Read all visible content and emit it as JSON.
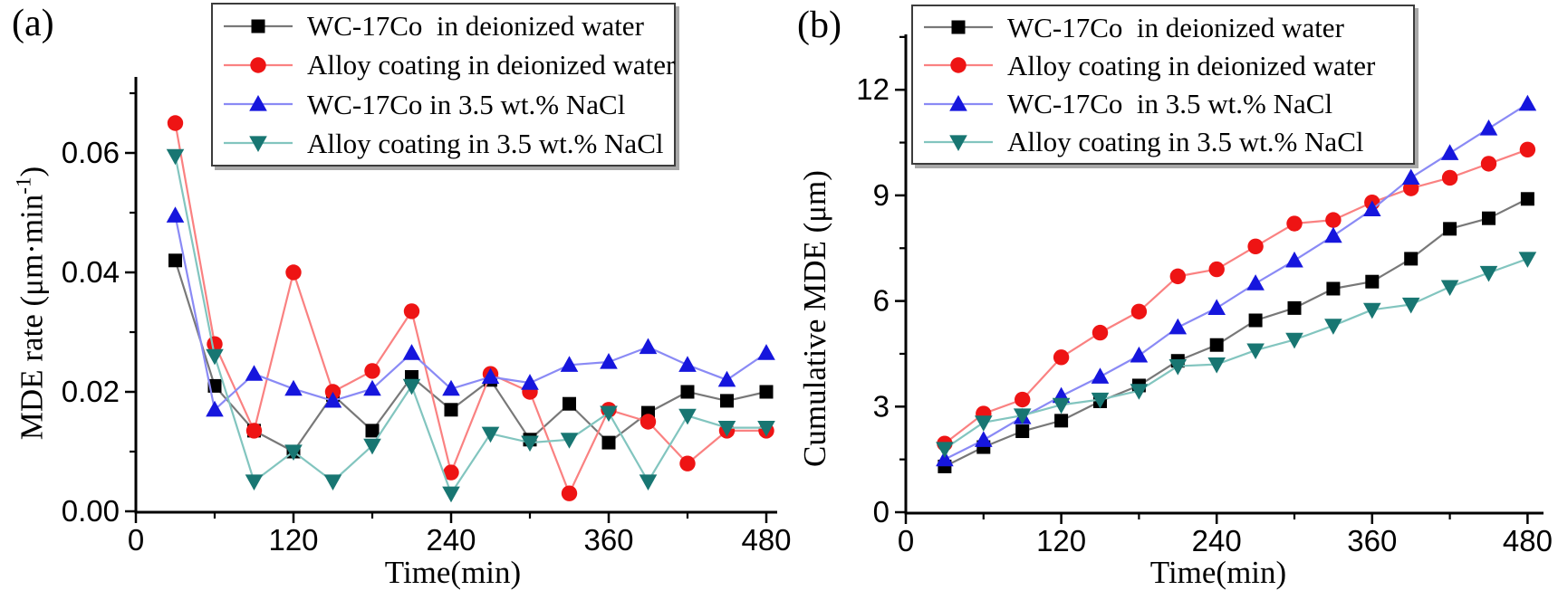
{
  "figure": {
    "panel_a": {
      "panel_label": "(a)",
      "x_title": "Time(min)",
      "y_title_prefix": "MDE rate (μm·min",
      "y_title_sup": "-1",
      "y_title_suffix": ")",
      "x_tick_labels": [
        "0",
        "120",
        "240",
        "360",
        "480"
      ],
      "y_tick_labels": [
        "0.00",
        "0.02",
        "0.04",
        "0.06"
      ],
      "legend": [
        "WC-17Co  in deionized water",
        "Alloy coating in deionized water",
        "WC-17Co in 3.5 wt.% NaCl",
        "Alloy coating in 3.5 wt.% NaCl"
      ]
    },
    "panel_b": {
      "panel_label": "(b)",
      "x_title": "Time(min)",
      "y_title": "Cumulative MDE (μm)",
      "x_tick_labels": [
        "0",
        "120",
        "240",
        "360",
        "480"
      ],
      "y_tick_labels": [
        "0",
        "3",
        "6",
        "9",
        "12"
      ],
      "legend": [
        "WC-17Co  in deionized water",
        "Alloy coating in deionized water",
        "WC-17Co  in 3.5 wt.% NaCl",
        "Alloy coating in 3.5 wt.% NaCl"
      ]
    },
    "series_styles": [
      {
        "name": "WC-17Co in deionized water",
        "marker": "square",
        "marker_color": "#000000",
        "line_color": "#787878"
      },
      {
        "name": "Alloy coating in deionized water",
        "marker": "circle",
        "marker_color": "#ee1414",
        "line_color": "#fa8181"
      },
      {
        "name": "WC-17Co in 3.5 wt.% NaCl",
        "marker": "triangle-up",
        "marker_color": "#1616dd",
        "line_color": "#8a8af5"
      },
      {
        "name": "Alloy coating in 3.5 wt.% NaCl",
        "marker": "triangle-down",
        "marker_color": "#187672",
        "line_color": "#82c5bf"
      }
    ],
    "colors": {
      "axis": "#000000",
      "background": "#ffffff",
      "legend_border": "#3c3c3c"
    }
  },
  "chart_data": [
    {
      "id": "a",
      "type": "line",
      "title": "",
      "xlabel": "Time(min)",
      "ylabel": "MDE rate (μm·min^-1)",
      "xlim": [
        0,
        488
      ],
      "ylim": [
        0,
        0.0727
      ],
      "x_ticks_major": [
        0,
        120,
        240,
        360,
        480
      ],
      "x_ticks_minor": [
        60,
        180,
        300,
        420
      ],
      "y_ticks_major": [
        0,
        0.02,
        0.04,
        0.06
      ],
      "y_ticks_minor": [
        0.01,
        0.03,
        0.05,
        0.07
      ],
      "grid": false,
      "legend_position": "top",
      "x": [
        30,
        60,
        90,
        120,
        150,
        180,
        210,
        240,
        270,
        300,
        330,
        360,
        390,
        420,
        450,
        480
      ],
      "series": [
        {
          "name": "WC-17Co in deionized water",
          "values": [
            0.042,
            0.021,
            0.0135,
            0.01,
            0.0195,
            0.0135,
            0.0225,
            0.017,
            0.022,
            0.012,
            0.018,
            0.0115,
            0.0165,
            0.02,
            0.0185,
            0.02
          ]
        },
        {
          "name": "Alloy coating in deionized water",
          "values": [
            0.065,
            0.028,
            0.0135,
            0.04,
            0.02,
            0.0235,
            0.0335,
            0.0065,
            0.023,
            0.02,
            0.003,
            0.017,
            0.015,
            0.008,
            0.0135,
            0.0135
          ]
        },
        {
          "name": "WC-17Co in 3.5 wt.% NaCl",
          "values": [
            0.0495,
            0.017,
            0.023,
            0.0205,
            0.0185,
            0.0205,
            0.0265,
            0.0205,
            0.0225,
            0.0215,
            0.0245,
            0.025,
            0.0275,
            0.0245,
            0.022,
            0.0265
          ]
        },
        {
          "name": "Alloy coating in 3.5 wt.% NaCl",
          "values": [
            0.0595,
            0.026,
            0.005,
            0.01,
            0.005,
            0.011,
            0.021,
            0.003,
            0.013,
            0.0115,
            0.012,
            0.0165,
            0.005,
            0.016,
            0.014,
            0.014
          ]
        }
      ]
    },
    {
      "id": "b",
      "type": "line",
      "title": "",
      "xlabel": "Time(min)",
      "ylabel": "Cumulative MDE (μm)",
      "xlim": [
        0,
        490
      ],
      "ylim": [
        0,
        13.6
      ],
      "x_ticks_major": [
        0,
        120,
        240,
        360,
        480
      ],
      "x_ticks_minor": [
        60,
        180,
        300,
        420
      ],
      "y_ticks_major": [
        0,
        3,
        6,
        9,
        12
      ],
      "y_ticks_minor": [
        1.5,
        4.5,
        7.5,
        10.5,
        13.5
      ],
      "grid": false,
      "legend_position": "top",
      "x": [
        30,
        60,
        90,
        120,
        150,
        180,
        210,
        240,
        270,
        300,
        330,
        360,
        390,
        420,
        450,
        480
      ],
      "series": [
        {
          "name": "WC-17Co in deionized water",
          "values": [
            1.3,
            1.85,
            2.3,
            2.6,
            3.15,
            3.6,
            4.3,
            4.75,
            5.45,
            5.8,
            6.35,
            6.55,
            7.2,
            8.05,
            8.35,
            8.9
          ]
        },
        {
          "name": "Alloy coating in deionized water",
          "values": [
            1.95,
            2.8,
            3.2,
            4.4,
            5.1,
            5.7,
            6.7,
            6.9,
            7.55,
            8.2,
            8.3,
            8.8,
            9.2,
            9.5,
            9.9,
            10.3
          ]
        },
        {
          "name": "WC-17Co in 3.5 wt.% NaCl",
          "values": [
            1.5,
            2.05,
            2.7,
            3.3,
            3.85,
            4.45,
            5.25,
            5.8,
            6.5,
            7.15,
            7.85,
            8.6,
            9.5,
            10.2,
            10.9,
            11.6
          ]
        },
        {
          "name": "Alloy coating in 3.5 wt.% NaCl",
          "values": [
            1.8,
            2.55,
            2.75,
            3.05,
            3.2,
            3.45,
            4.15,
            4.2,
            4.6,
            4.9,
            5.3,
            5.75,
            5.9,
            6.4,
            6.8,
            7.2
          ]
        }
      ]
    }
  ]
}
